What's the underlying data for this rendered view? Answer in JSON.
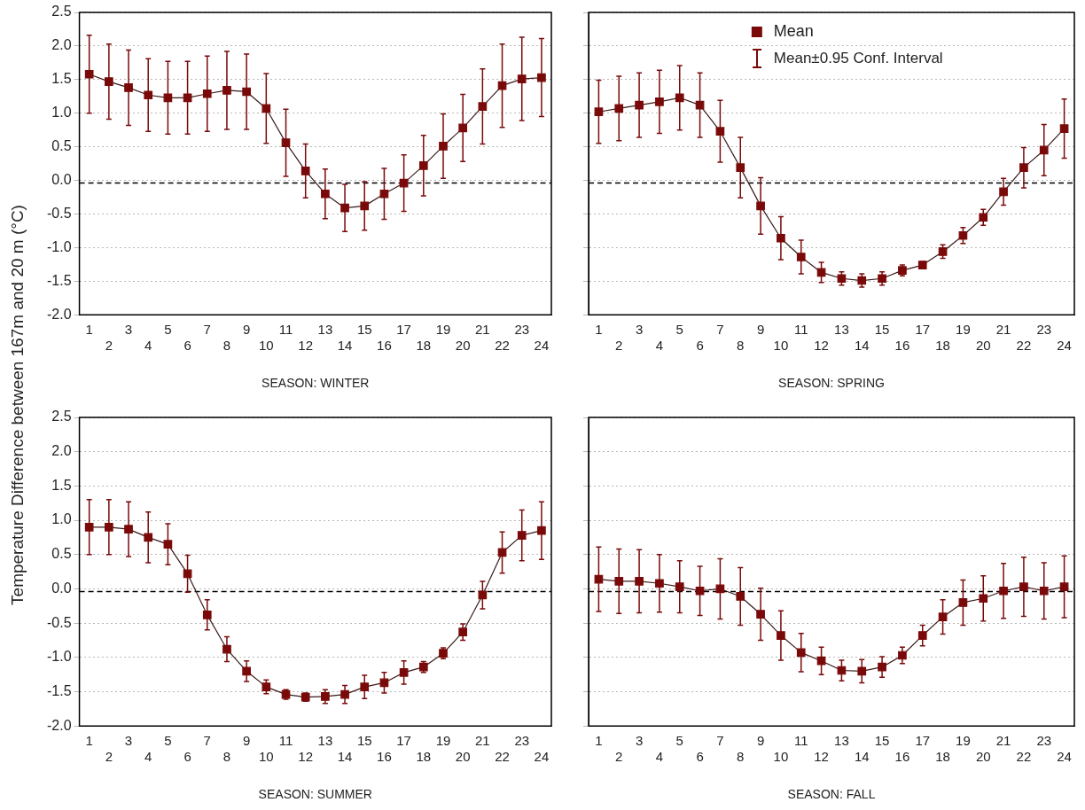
{
  "chart_data": [
    {
      "type": "line",
      "xlabel": "SEASON: WINTER",
      "ylabel": "Temperature Difference between 167m and 20 m (°C)",
      "categories": [
        "1",
        "2",
        "3",
        "4",
        "5",
        "6",
        "7",
        "8",
        "9",
        "10",
        "11",
        "12",
        "13",
        "14",
        "15",
        "16",
        "17",
        "18",
        "19",
        "20",
        "21",
        "22",
        "23",
        "24"
      ],
      "series": [
        {
          "color": "#7a0a0a",
          "values": [
            1.58,
            1.47,
            1.38,
            1.27,
            1.23,
            1.23,
            1.29,
            1.34,
            1.32,
            1.07,
            0.56,
            0.14,
            -0.2,
            -0.41,
            -0.38,
            -0.2,
            -0.04,
            0.22,
            0.51,
            0.78,
            1.1,
            1.41,
            1.51,
            1.53
          ],
          "errors": [
            0.58,
            0.56,
            0.56,
            0.54,
            0.54,
            0.54,
            0.56,
            0.58,
            0.56,
            0.52,
            0.5,
            0.4,
            0.37,
            0.35,
            0.36,
            0.38,
            0.42,
            0.45,
            0.48,
            0.5,
            0.56,
            0.62,
            0.62,
            0.58
          ]
        }
      ],
      "ylim": [
        -2,
        2.5
      ],
      "yticks": [
        {
          "value": -2,
          "label": "-2.0"
        },
        {
          "value": -1.5,
          "label": "-1.5"
        },
        {
          "value": -1,
          "label": "-1.0"
        },
        {
          "value": -0.5,
          "label": "-0.5"
        },
        {
          "value": 0,
          "label": "0.0"
        },
        {
          "value": 0.5,
          "label": "0.5"
        },
        {
          "value": 1,
          "label": "1.0"
        },
        {
          "value": 1.5,
          "label": "1.5"
        },
        {
          "value": 2,
          "label": "2.0"
        },
        {
          "value": 2.5,
          "label": "2.5"
        }
      ],
      "grid": "y",
      "marker": "square",
      "line_style": "solid",
      "ref_lines": [
        {
          "axis": "y",
          "value": -0.04,
          "color": "#000000",
          "line_style": "dashed"
        }
      ]
    },
    {
      "type": "line",
      "xlabel": "SEASON: SPRING",
      "categories": [
        "1",
        "2",
        "3",
        "4",
        "5",
        "6",
        "7",
        "8",
        "9",
        "10",
        "11",
        "12",
        "13",
        "14",
        "15",
        "16",
        "17",
        "18",
        "19",
        "20",
        "21",
        "22",
        "23",
        "24"
      ],
      "series": [
        {
          "name": "Mean",
          "color": "#7a0a0a",
          "values": [
            1.02,
            1.07,
            1.12,
            1.17,
            1.23,
            1.12,
            0.73,
            0.19,
            -0.38,
            -0.86,
            -1.14,
            -1.37,
            -1.46,
            -1.49,
            -1.46,
            -1.34,
            -1.26,
            -1.06,
            -0.82,
            -0.55,
            -0.17,
            0.19,
            0.45,
            0.77
          ],
          "errors": [
            0.47,
            0.48,
            0.48,
            0.47,
            0.48,
            0.48,
            0.46,
            0.45,
            0.42,
            0.32,
            0.25,
            0.15,
            0.1,
            0.1,
            0.1,
            0.08,
            0.05,
            0.1,
            0.12,
            0.12,
            0.2,
            0.3,
            0.38,
            0.44
          ]
        }
      ],
      "ylim": [
        -2,
        2.5
      ],
      "yticks": [
        {
          "value": -2,
          "label": null
        },
        {
          "value": -1.5,
          "label": null
        },
        {
          "value": -1,
          "label": null
        },
        {
          "value": -0.5,
          "label": null
        },
        {
          "value": 0,
          "label": null
        },
        {
          "value": 0.5,
          "label": null
        },
        {
          "value": 1,
          "label": null
        },
        {
          "value": 1.5,
          "label": null
        },
        {
          "value": 2,
          "label": null
        },
        {
          "value": 2.5,
          "label": null
        }
      ],
      "tick_labels": "x",
      "grid": "y",
      "marker": "square",
      "line_style": "solid",
      "legend": "top",
      "annotations": [
        "Mean±0.95 Conf. Interval"
      ],
      "ref_lines": [
        {
          "axis": "y",
          "value": -0.04,
          "color": "#000000",
          "line_style": "dashed"
        }
      ]
    },
    {
      "type": "line",
      "xlabel": "SEASON: SUMMER",
      "categories": [
        "1",
        "2",
        "3",
        "4",
        "5",
        "6",
        "7",
        "8",
        "9",
        "10",
        "11",
        "12",
        "13",
        "14",
        "15",
        "16",
        "17",
        "18",
        "19",
        "20",
        "21",
        "22",
        "23",
        "24"
      ],
      "series": [
        {
          "color": "#7a0a0a",
          "values": [
            0.9,
            0.9,
            0.87,
            0.75,
            0.65,
            0.22,
            -0.38,
            -0.88,
            -1.2,
            -1.43,
            -1.54,
            -1.58,
            -1.57,
            -1.54,
            -1.43,
            -1.37,
            -1.22,
            -1.14,
            -0.94,
            -0.63,
            -0.09,
            0.53,
            0.78,
            0.85
          ],
          "errors": [
            0.4,
            0.4,
            0.4,
            0.37,
            0.3,
            0.27,
            0.22,
            0.18,
            0.15,
            0.1,
            0.07,
            0.06,
            0.1,
            0.13,
            0.17,
            0.15,
            0.17,
            0.08,
            0.08,
            0.12,
            0.2,
            0.3,
            0.37,
            0.42
          ]
        }
      ],
      "ylim": [
        -2,
        2.5
      ],
      "yticks": [
        {
          "value": -2,
          "label": "-2.0"
        },
        {
          "value": -1.5,
          "label": "-1.5"
        },
        {
          "value": -1,
          "label": "-1.0"
        },
        {
          "value": -0.5,
          "label": "-0.5"
        },
        {
          "value": 0,
          "label": "0.0"
        },
        {
          "value": 0.5,
          "label": "0.5"
        },
        {
          "value": 1,
          "label": "1.0"
        },
        {
          "value": 1.5,
          "label": "1.5"
        },
        {
          "value": 2,
          "label": "2.0"
        },
        {
          "value": 2.5,
          "label": "2.5"
        }
      ],
      "grid": "y",
      "marker": "square",
      "line_style": "solid",
      "ref_lines": [
        {
          "axis": "y",
          "value": -0.04,
          "color": "#000000",
          "line_style": "dashed"
        }
      ]
    },
    {
      "type": "line",
      "xlabel": "SEASON: FALL",
      "categories": [
        "1",
        "2",
        "3",
        "4",
        "5",
        "6",
        "7",
        "8",
        "9",
        "10",
        "11",
        "12",
        "13",
        "14",
        "15",
        "16",
        "17",
        "18",
        "19",
        "20",
        "21",
        "22",
        "23",
        "24"
      ],
      "series": [
        {
          "color": "#7a0a0a",
          "values": [
            0.14,
            0.11,
            0.11,
            0.08,
            0.03,
            -0.03,
            0.0,
            -0.11,
            -0.37,
            -0.68,
            -0.93,
            -1.05,
            -1.19,
            -1.2,
            -1.14,
            -0.97,
            -0.68,
            -0.41,
            -0.2,
            -0.14,
            -0.03,
            0.03,
            -0.03,
            0.03
          ],
          "errors": [
            0.47,
            0.47,
            0.46,
            0.42,
            0.38,
            0.36,
            0.44,
            0.42,
            0.38,
            0.36,
            0.28,
            0.2,
            0.15,
            0.17,
            0.15,
            0.12,
            0.15,
            0.25,
            0.33,
            0.33,
            0.4,
            0.43,
            0.41,
            0.45
          ]
        }
      ],
      "ylim": [
        -2,
        2.5
      ],
      "yticks": [
        {
          "value": -2,
          "label": null
        },
        {
          "value": -1.5,
          "label": null
        },
        {
          "value": -1,
          "label": null
        },
        {
          "value": -0.5,
          "label": null
        },
        {
          "value": 0,
          "label": null
        },
        {
          "value": 0.5,
          "label": null
        },
        {
          "value": 1,
          "label": null
        },
        {
          "value": 1.5,
          "label": null
        },
        {
          "value": 2,
          "label": null
        },
        {
          "value": 2.5,
          "label": null
        }
      ],
      "tick_labels": "x",
      "grid": "y",
      "marker": "square",
      "line_style": "solid",
      "ref_lines": [
        {
          "axis": "y",
          "value": -0.04,
          "color": "#000000",
          "line_style": "dashed"
        }
      ]
    }
  ]
}
